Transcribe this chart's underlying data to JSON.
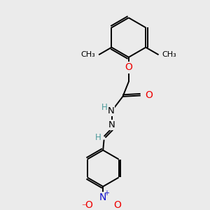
{
  "background_color": "#ebebeb",
  "bond_color": "#000000",
  "atom_colors": {
    "O": "#ee0000",
    "N": "#1010cc",
    "H": "#4a9a9a",
    "C": "#000000"
  },
  "font_size": 9.0,
  "linewidth": 1.4
}
